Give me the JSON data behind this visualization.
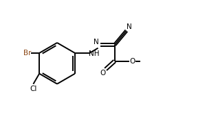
{
  "bg_color": "#ffffff",
  "line_color": "#000000",
  "br_color": "#8B4513",
  "bond_lw": 1.4,
  "fig_width": 3.17,
  "fig_height": 1.9,
  "dpi": 100,
  "xlim": [
    0,
    10
  ],
  "ylim": [
    0,
    6
  ]
}
